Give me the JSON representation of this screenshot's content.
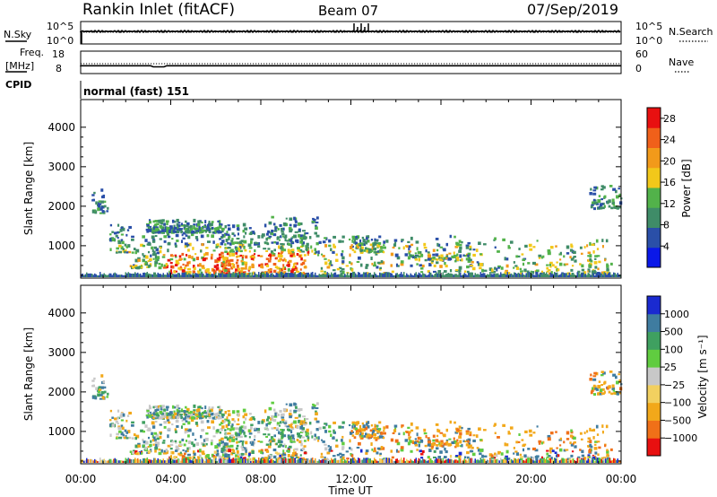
{
  "header": {
    "title": "Rankin Inlet (fitACF)",
    "beam": "Beam 07",
    "date": "07/Sep/2019"
  },
  "summary_panel": {
    "nsky_label": "N.Sky",
    "nsky_ticks": [
      "10^5",
      "10^0"
    ],
    "nsearch_label": "N.Search",
    "nsearch_ticks": [
      "10^5",
      "10^0"
    ],
    "freq_label_1": "Freq.",
    "freq_label_2": "[MHz]",
    "freq_ticks": [
      "18",
      "8"
    ],
    "nave_label": "Nave",
    "nave_ticks": [
      "60",
      "0"
    ],
    "cpid_label": "CPID",
    "cpid_value": "normal (fast) 151"
  },
  "colors": {
    "power_scale": [
      "#0a18e8",
      "#2a4fa8",
      "#3f8c68",
      "#52b24a",
      "#f2c81a",
      "#f29a1a",
      "#f0601a",
      "#e81010"
    ],
    "velocity_scale": [
      "#e81010",
      "#f07018",
      "#f2a81a",
      "#f2d060",
      "#c8c8c8",
      "#60cc40",
      "#3fa060",
      "#3f7ca0",
      "#1a2ad0"
    ],
    "ground": "#808080"
  },
  "chart_data": [
    {
      "type": "heatmap",
      "title": "",
      "ylabel": "Slant Range [km]",
      "xlabel": "",
      "y_ticks": [
        "1000",
        "2000",
        "3000",
        "4000"
      ],
      "yrange_km": [
        180,
        4700
      ],
      "colorbar_label": "Power [dB]",
      "colorbar_ticks": [
        "4",
        "8",
        "12",
        "16",
        "20",
        "24",
        "28"
      ],
      "colorbar_range": [
        0,
        30
      ]
    },
    {
      "type": "heatmap",
      "title": "",
      "ylabel": "Slant Range [km]",
      "xlabel": "Time UT",
      "x_ticks": [
        "00:00",
        "04:00",
        "08:00",
        "12:00",
        "16:00",
        "20:00",
        "00:00"
      ],
      "y_ticks": [
        "1000",
        "2000",
        "3000",
        "4000"
      ],
      "yrange_km": [
        180,
        4700
      ],
      "colorbar_label": "Velocity [m s⁻¹]",
      "colorbar_ticks": [
        "1000",
        "500",
        "100",
        "25",
        "−25",
        "−100",
        "−500",
        "−1000"
      ]
    }
  ]
}
